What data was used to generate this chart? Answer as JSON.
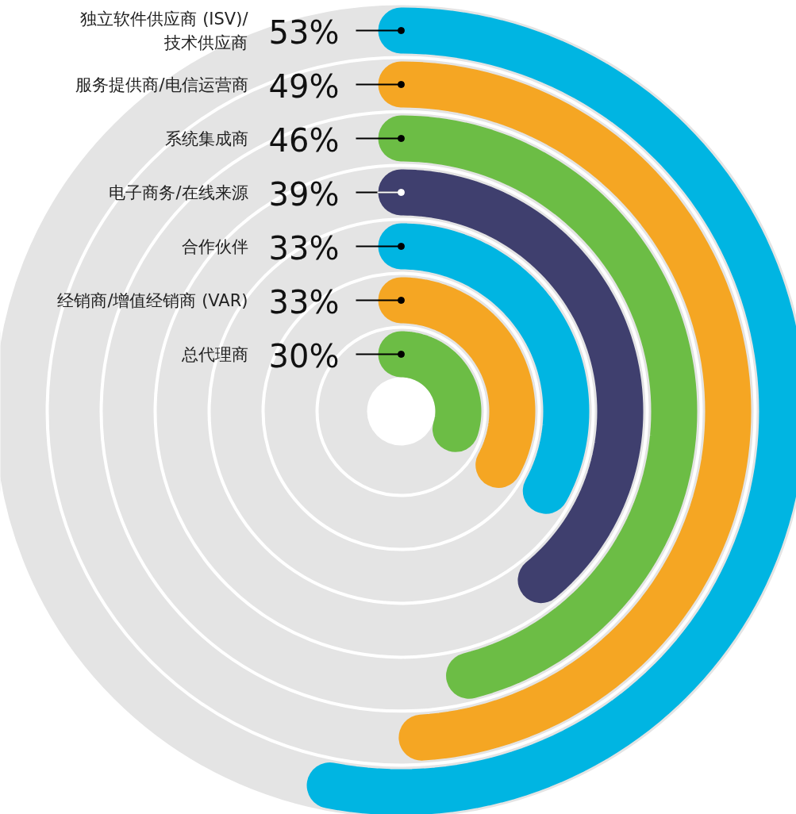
{
  "chart_data": {
    "type": "other",
    "categories": [
      "独立软件供应商 (ISV)/技术供应商",
      "服务提供商/电信运营商",
      "系统集成商",
      "电子商务/在线来源",
      "合作伙伴",
      "经销商/增值经销商 (VAR)",
      "总代理商"
    ],
    "values": [
      53,
      49,
      46,
      39,
      33,
      33,
      30
    ],
    "colors": [
      "#00b5e2",
      "#f5a623",
      "#6cbd45",
      "#3f3f6e",
      "#00b5e2",
      "#f5a623",
      "#6cbd45"
    ],
    "value_labels": [
      "53%",
      "49%",
      "46%",
      "39%",
      "33%",
      "33%",
      "30%"
    ]
  }
}
